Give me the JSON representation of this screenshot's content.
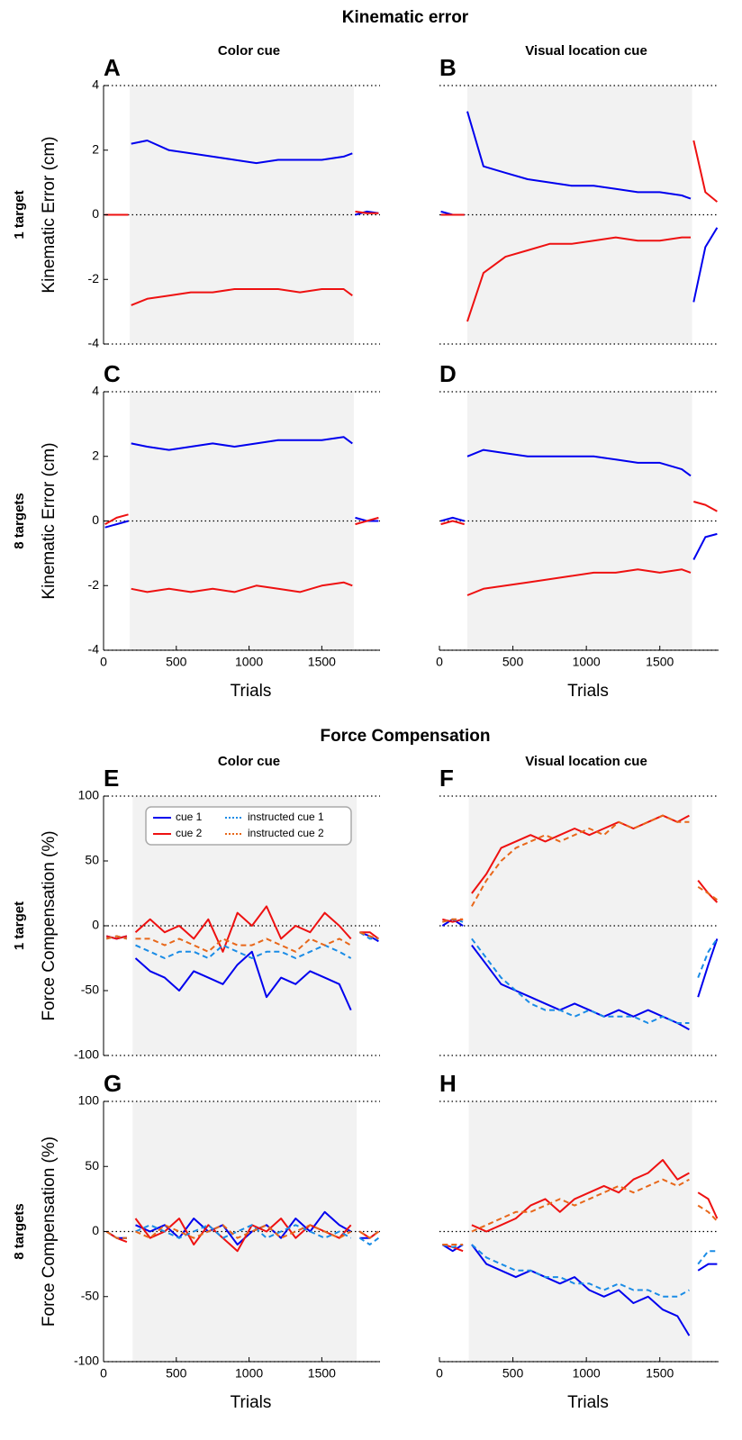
{
  "figure_titles": [
    "Kinematic error",
    "Force Compensation"
  ],
  "chart_data": [
    {
      "type": "line",
      "label": "A",
      "col_title": "Color cue",
      "row_label": "1 target",
      "ylabel": "Kinematic Error (cm)",
      "xlim": [
        0,
        1900
      ],
      "ylim": [
        -4,
        4
      ],
      "yticks": [
        -4,
        -2,
        0,
        2,
        4
      ],
      "hlines": [
        -4,
        0,
        4
      ],
      "shaded": [
        180,
        1720
      ],
      "x": [
        10,
        90,
        170,
        180,
        190,
        300,
        450,
        600,
        750,
        900,
        1050,
        1200,
        1350,
        1500,
        1650,
        1710,
        1720,
        1730,
        1810,
        1890
      ],
      "series": [
        {
          "color": "#0000ee",
          "values": [
            0,
            0,
            0,
            null,
            2.2,
            2.3,
            2.0,
            1.9,
            1.8,
            1.7,
            1.6,
            1.7,
            1.7,
            1.7,
            1.8,
            1.9,
            null,
            0,
            0.1,
            0.05
          ]
        },
        {
          "color": "#ee1111",
          "values": [
            0,
            0,
            0,
            null,
            -2.8,
            -2.6,
            -2.5,
            -2.4,
            -2.4,
            -2.3,
            -2.3,
            -2.3,
            -2.4,
            -2.3,
            -2.3,
            -2.5,
            null,
            0.1,
            0.05,
            0.05
          ]
        }
      ]
    },
    {
      "type": "line",
      "label": "B",
      "col_title": "Visual location cue",
      "xlim": [
        0,
        1900
      ],
      "ylim": [
        -4,
        4
      ],
      "hlines": [
        -4,
        0,
        4
      ],
      "shaded": [
        190,
        1720
      ],
      "x": [
        10,
        90,
        170,
        180,
        190,
        300,
        450,
        600,
        750,
        900,
        1050,
        1200,
        1350,
        1500,
        1650,
        1710,
        1720,
        1730,
        1810,
        1890
      ],
      "series": [
        {
          "color": "#0000ee",
          "values": [
            0.1,
            0,
            0,
            null,
            3.2,
            1.5,
            1.3,
            1.1,
            1.0,
            0.9,
            0.9,
            0.8,
            0.7,
            0.7,
            0.6,
            0.5,
            null,
            -2.7,
            -1.0,
            -0.4
          ]
        },
        {
          "color": "#ee1111",
          "values": [
            0,
            0,
            0,
            null,
            -3.3,
            -1.8,
            -1.3,
            -1.1,
            -0.9,
            -0.9,
            -0.8,
            -0.7,
            -0.8,
            -0.8,
            -0.7,
            -0.7,
            null,
            2.3,
            0.7,
            0.4
          ]
        }
      ]
    },
    {
      "type": "line",
      "label": "C",
      "row_label": "8 targets",
      "ylabel": "Kinematic Error (cm)",
      "xlabel": "Trials",
      "xlim": [
        0,
        1900
      ],
      "ylim": [
        -4,
        4
      ],
      "xticks": [
        0,
        500,
        1000,
        1500
      ],
      "yticks": [
        -4,
        -2,
        0,
        2,
        4
      ],
      "hlines": [
        -4,
        0,
        4
      ],
      "shaded": [
        180,
        1720
      ],
      "x": [
        10,
        90,
        170,
        180,
        190,
        300,
        450,
        600,
        750,
        900,
        1050,
        1200,
        1350,
        1500,
        1650,
        1710,
        1720,
        1730,
        1810,
        1890
      ],
      "series": [
        {
          "color": "#0000ee",
          "values": [
            -0.2,
            -0.1,
            0,
            null,
            2.4,
            2.3,
            2.2,
            2.3,
            2.4,
            2.3,
            2.4,
            2.5,
            2.5,
            2.5,
            2.6,
            2.4,
            null,
            0.1,
            0,
            0
          ]
        },
        {
          "color": "#ee1111",
          "values": [
            -0.1,
            0.1,
            0.2,
            null,
            -2.1,
            -2.2,
            -2.1,
            -2.2,
            -2.1,
            -2.2,
            -2.0,
            -2.1,
            -2.2,
            -2.0,
            -1.9,
            -2.0,
            null,
            -0.1,
            0,
            0.1
          ]
        }
      ]
    },
    {
      "type": "line",
      "label": "D",
      "xlabel": "Trials",
      "xlim": [
        0,
        1900
      ],
      "ylim": [
        -4,
        4
      ],
      "xticks": [
        0,
        500,
        1000,
        1500
      ],
      "hlines": [
        -4,
        0,
        4
      ],
      "shaded": [
        190,
        1720
      ],
      "x": [
        10,
        90,
        170,
        180,
        190,
        300,
        450,
        600,
        750,
        900,
        1050,
        1200,
        1350,
        1500,
        1650,
        1710,
        1720,
        1730,
        1810,
        1890
      ],
      "series": [
        {
          "color": "#0000ee",
          "values": [
            0,
            0.1,
            0,
            null,
            2.0,
            2.2,
            2.1,
            2.0,
            2.0,
            2.0,
            2.0,
            1.9,
            1.8,
            1.8,
            1.6,
            1.4,
            null,
            -1.2,
            -0.5,
            -0.4
          ]
        },
        {
          "color": "#ee1111",
          "values": [
            -0.1,
            0,
            -0.1,
            null,
            -2.3,
            -2.1,
            -2.0,
            -1.9,
            -1.8,
            -1.7,
            -1.6,
            -1.6,
            -1.5,
            -1.6,
            -1.5,
            -1.6,
            null,
            0.6,
            0.5,
            0.3
          ]
        }
      ]
    },
    {
      "type": "line",
      "label": "E",
      "col_title": "Color cue",
      "row_label": "1 target",
      "ylabel": "Force Compensation (%)",
      "xlim": [
        0,
        1900
      ],
      "ylim": [
        -100,
        100
      ],
      "yticks": [
        -100,
        -50,
        0,
        50,
        100
      ],
      "hlines": [
        -100,
        0,
        100
      ],
      "shaded": [
        200,
        1740
      ],
      "legend": "upper-left",
      "x": [
        20,
        90,
        160,
        190,
        220,
        320,
        420,
        520,
        620,
        720,
        820,
        920,
        1020,
        1120,
        1220,
        1320,
        1420,
        1520,
        1620,
        1700,
        1720,
        1760,
        1830,
        1890
      ],
      "series": [
        {
          "name": "cue 1",
          "color": "#0000ee",
          "values": [
            -8,
            -10,
            -8,
            null,
            -25,
            -35,
            -40,
            -50,
            -35,
            -40,
            -45,
            -30,
            -20,
            -55,
            -40,
            -45,
            -35,
            -40,
            -45,
            -65,
            null,
            -5,
            -8,
            -12
          ]
        },
        {
          "name": "cue 2",
          "color": "#ee1111",
          "values": [
            -8,
            -10,
            -8,
            null,
            -5,
            5,
            -5,
            0,
            -10,
            5,
            -20,
            10,
            0,
            15,
            -10,
            0,
            -5,
            10,
            0,
            -10,
            null,
            -5,
            -5,
            -10
          ]
        },
        {
          "name": "instructed cue 1",
          "color": "#1a8ce6",
          "dash": true,
          "values": [
            -10,
            -8,
            -10,
            null,
            -15,
            -20,
            -25,
            -20,
            -20,
            -25,
            -15,
            -20,
            -25,
            -20,
            -20,
            -25,
            -20,
            -15,
            -20,
            -25,
            null,
            -5,
            -10,
            -10
          ]
        },
        {
          "name": "instructed cue 2",
          "color": "#e8671a",
          "dash": true,
          "values": [
            -10,
            -8,
            -10,
            null,
            -10,
            -10,
            -15,
            -10,
            -15,
            -20,
            -10,
            -15,
            -15,
            -10,
            -15,
            -20,
            -10,
            -15,
            -10,
            -15,
            null,
            -5,
            -8,
            -10
          ]
        }
      ]
    },
    {
      "type": "line",
      "label": "F",
      "col_title": "Visual location cue",
      "xlim": [
        0,
        1900
      ],
      "ylim": [
        -100,
        100
      ],
      "hlines": [
        -100,
        0,
        100
      ],
      "shaded": [
        200,
        1720
      ],
      "x": [
        20,
        90,
        160,
        190,
        220,
        320,
        420,
        520,
        620,
        720,
        820,
        920,
        1020,
        1120,
        1220,
        1320,
        1420,
        1520,
        1620,
        1700,
        1720,
        1760,
        1830,
        1890
      ],
      "series": [
        {
          "color": "#0000ee",
          "values": [
            0,
            5,
            0,
            null,
            -15,
            -30,
            -45,
            -50,
            -55,
            -60,
            -65,
            -60,
            -65,
            -70,
            -65,
            -70,
            -65,
            -70,
            -75,
            -80,
            null,
            -55,
            -30,
            -10
          ]
        },
        {
          "color": "#ee1111",
          "values": [
            5,
            3,
            5,
            null,
            25,
            40,
            60,
            65,
            70,
            65,
            70,
            75,
            70,
            75,
            80,
            75,
            80,
            85,
            80,
            85,
            null,
            35,
            25,
            18
          ]
        },
        {
          "color": "#1a8ce6",
          "dash": true,
          "values": [
            3,
            5,
            3,
            null,
            -10,
            -25,
            -40,
            -50,
            -60,
            -65,
            -65,
            -70,
            -65,
            -70,
            -70,
            -70,
            -75,
            -70,
            -75,
            -75,
            null,
            -40,
            -20,
            -10
          ]
        },
        {
          "color": "#e8671a",
          "dash": true,
          "values": [
            3,
            5,
            5,
            null,
            15,
            35,
            50,
            60,
            65,
            70,
            65,
            70,
            75,
            70,
            80,
            75,
            80,
            85,
            80,
            80,
            null,
            30,
            25,
            20
          ]
        }
      ]
    },
    {
      "type": "line",
      "label": "G",
      "row_label": "8 targets",
      "ylabel": "Force Compensation (%)",
      "xlabel": "Trials",
      "xlim": [
        0,
        1900
      ],
      "ylim": [
        -100,
        100
      ],
      "xticks": [
        0,
        500,
        1000,
        1500
      ],
      "yticks": [
        -100,
        -50,
        0,
        50,
        100
      ],
      "hlines": [
        -100,
        0,
        100
      ],
      "shaded": [
        200,
        1740
      ],
      "x": [
        20,
        90,
        160,
        190,
        220,
        320,
        420,
        520,
        620,
        720,
        820,
        920,
        1020,
        1120,
        1220,
        1320,
        1420,
        1520,
        1620,
        1700,
        1720,
        1760,
        1830,
        1890
      ],
      "series": [
        {
          "color": "#0000ee",
          "values": [
            0,
            -5,
            -5,
            null,
            5,
            0,
            5,
            -5,
            10,
            0,
            5,
            -10,
            0,
            5,
            -5,
            10,
            0,
            15,
            5,
            0,
            null,
            -5,
            -5,
            0
          ]
        },
        {
          "color": "#ee1111",
          "values": [
            0,
            -5,
            -8,
            null,
            10,
            -5,
            0,
            10,
            -10,
            5,
            -5,
            -15,
            5,
            0,
            10,
            -5,
            5,
            0,
            -5,
            5,
            null,
            0,
            -5,
            0
          ]
        },
        {
          "color": "#1a8ce6",
          "dash": true,
          "values": [
            0,
            -5,
            -5,
            null,
            0,
            5,
            0,
            -5,
            0,
            5,
            -5,
            0,
            5,
            -5,
            0,
            5,
            0,
            -5,
            0,
            -5,
            null,
            -5,
            -10,
            -5
          ]
        },
        {
          "color": "#e8671a",
          "dash": true,
          "values": [
            0,
            -5,
            -5,
            null,
            0,
            -5,
            5,
            0,
            -5,
            0,
            5,
            -5,
            0,
            5,
            -5,
            0,
            5,
            0,
            -5,
            0,
            null,
            0,
            -5,
            0
          ]
        }
      ]
    },
    {
      "type": "line",
      "label": "H",
      "xlabel": "Trials",
      "xlim": [
        0,
        1900
      ],
      "ylim": [
        -100,
        100
      ],
      "xticks": [
        0,
        500,
        1000,
        1500
      ],
      "hlines": [
        -100,
        0,
        100
      ],
      "shaded": [
        200,
        1720
      ],
      "x": [
        20,
        90,
        160,
        190,
        220,
        320,
        420,
        520,
        620,
        720,
        820,
        920,
        1020,
        1120,
        1220,
        1320,
        1420,
        1520,
        1620,
        1700,
        1720,
        1760,
        1830,
        1890
      ],
      "series": [
        {
          "color": "#0000ee",
          "values": [
            -10,
            -15,
            -10,
            null,
            -10,
            -25,
            -30,
            -35,
            -30,
            -35,
            -40,
            -35,
            -45,
            -50,
            -45,
            -55,
            -50,
            -60,
            -65,
            -80,
            null,
            -30,
            -25,
            -25
          ]
        },
        {
          "color": "#ee1111",
          "values": [
            -10,
            -12,
            -15,
            null,
            5,
            0,
            5,
            10,
            20,
            25,
            15,
            25,
            30,
            35,
            30,
            40,
            45,
            55,
            40,
            45,
            null,
            30,
            25,
            10
          ]
        },
        {
          "color": "#1a8ce6",
          "dash": true,
          "values": [
            -10,
            -12,
            -10,
            null,
            -10,
            -20,
            -25,
            -30,
            -30,
            -35,
            -35,
            -40,
            -40,
            -45,
            -40,
            -45,
            -45,
            -50,
            -50,
            -45,
            null,
            -25,
            -15,
            -15
          ]
        },
        {
          "color": "#e8671a",
          "dash": true,
          "values": [
            -10,
            -10,
            -10,
            null,
            0,
            5,
            10,
            15,
            15,
            20,
            25,
            20,
            25,
            30,
            35,
            30,
            35,
            40,
            35,
            40,
            null,
            20,
            15,
            8
          ]
        }
      ]
    }
  ]
}
